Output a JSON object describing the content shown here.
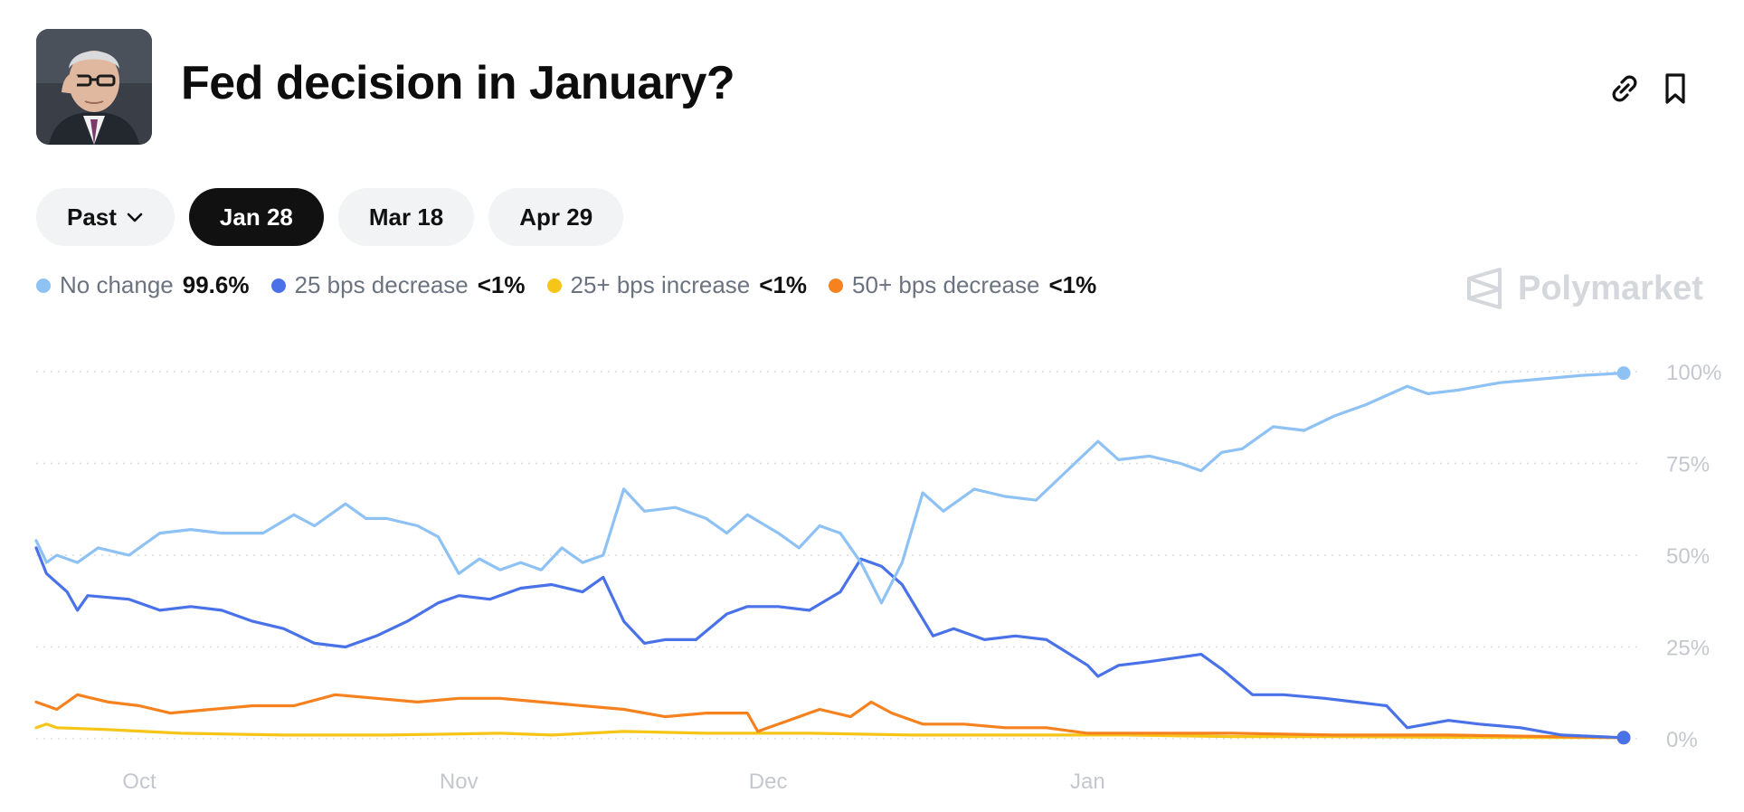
{
  "header": {
    "title": "Fed decision in January?",
    "avatar_icon": "portrait-image",
    "link_icon": "link-icon",
    "bookmark_icon": "bookmark-icon"
  },
  "tabs": [
    {
      "label": "Past",
      "active": false,
      "has_dropdown": true
    },
    {
      "label": "Jan 28",
      "active": true
    },
    {
      "label": "Mar 18",
      "active": false
    },
    {
      "label": "Apr 29",
      "active": false
    }
  ],
  "brand": {
    "name": "Polymarket"
  },
  "colors": {
    "no_change": "#8ec2f4",
    "decrease_25": "#4a72e8",
    "increase_25": "#f5c518",
    "decrease_50": "#f5821f",
    "grid": "#d8dbe0",
    "axis_text": "#c4c8ce"
  },
  "chart_data": {
    "type": "line",
    "x_labels": [
      "Oct",
      "Nov",
      "Dec",
      "Jan"
    ],
    "y_ticks": [
      "0%",
      "25%",
      "50%",
      "75%",
      "100%"
    ],
    "ylim": [
      0,
      100
    ],
    "grid": true,
    "legend_position": "top-left",
    "series": [
      {
        "name": "No change",
        "current": "99.6%",
        "color": "#8ec2f4",
        "points": [
          [
            "2024-09-21",
            54
          ],
          [
            "2024-09-22",
            48
          ],
          [
            "2024-09-23",
            50
          ],
          [
            "2024-09-25",
            48
          ],
          [
            "2024-09-27",
            52
          ],
          [
            "2024-09-30",
            50
          ],
          [
            "2024-10-03",
            56
          ],
          [
            "2024-10-06",
            57
          ],
          [
            "2024-10-09",
            56
          ],
          [
            "2024-10-13",
            56
          ],
          [
            "2024-10-16",
            61
          ],
          [
            "2024-10-18",
            58
          ],
          [
            "2024-10-21",
            64
          ],
          [
            "2024-10-23",
            60
          ],
          [
            "2024-10-25",
            60
          ],
          [
            "2024-10-28",
            58
          ],
          [
            "2024-10-30",
            55
          ],
          [
            "2024-11-01",
            45
          ],
          [
            "2024-11-03",
            49
          ],
          [
            "2024-11-05",
            46
          ],
          [
            "2024-11-07",
            48
          ],
          [
            "2024-11-09",
            46
          ],
          [
            "2024-11-11",
            52
          ],
          [
            "2024-11-13",
            48
          ],
          [
            "2024-11-15",
            50
          ],
          [
            "2024-11-17",
            68
          ],
          [
            "2024-11-19",
            62
          ],
          [
            "2024-11-22",
            63
          ],
          [
            "2024-11-25",
            60
          ],
          [
            "2024-11-27",
            56
          ],
          [
            "2024-11-29",
            61
          ],
          [
            "2024-12-02",
            56
          ],
          [
            "2024-12-04",
            52
          ],
          [
            "2024-12-06",
            58
          ],
          [
            "2024-12-08",
            56
          ],
          [
            "2024-12-10",
            48
          ],
          [
            "2024-12-12",
            37
          ],
          [
            "2024-12-14",
            48
          ],
          [
            "2024-12-16",
            67
          ],
          [
            "2024-12-18",
            62
          ],
          [
            "2024-12-21",
            68
          ],
          [
            "2024-12-24",
            66
          ],
          [
            "2024-12-27",
            65
          ],
          [
            "2024-12-30",
            73
          ],
          [
            "2025-01-02",
            81
          ],
          [
            "2025-01-04",
            76
          ],
          [
            "2025-01-07",
            77
          ],
          [
            "2025-01-10",
            75
          ],
          [
            "2025-01-12",
            73
          ],
          [
            "2025-01-14",
            78
          ],
          [
            "2025-01-16",
            79
          ],
          [
            "2025-01-19",
            85
          ],
          [
            "2025-01-22",
            84
          ],
          [
            "2025-01-25",
            88
          ],
          [
            "2025-01-28",
            91
          ],
          [
            "2025-02-01",
            96
          ],
          [
            "2025-02-03",
            94
          ],
          [
            "2025-02-06",
            95
          ],
          [
            "2025-02-10",
            97
          ],
          [
            "2025-02-14",
            98
          ],
          [
            "2025-02-18",
            99
          ],
          [
            "2025-02-22",
            99.6
          ]
        ]
      },
      {
        "name": "25 bps decrease",
        "current": "<1%",
        "color": "#4a72e8",
        "points": [
          [
            "2024-09-21",
            52
          ],
          [
            "2024-09-22",
            45
          ],
          [
            "2024-09-24",
            40
          ],
          [
            "2024-09-25",
            35
          ],
          [
            "2024-09-26",
            39
          ],
          [
            "2024-09-30",
            38
          ],
          [
            "2024-10-03",
            35
          ],
          [
            "2024-10-06",
            36
          ],
          [
            "2024-10-09",
            35
          ],
          [
            "2024-10-12",
            32
          ],
          [
            "2024-10-15",
            30
          ],
          [
            "2024-10-18",
            26
          ],
          [
            "2024-10-21",
            25
          ],
          [
            "2024-10-24",
            28
          ],
          [
            "2024-10-27",
            32
          ],
          [
            "2024-10-30",
            37
          ],
          [
            "2024-11-01",
            39
          ],
          [
            "2024-11-04",
            38
          ],
          [
            "2024-11-07",
            41
          ],
          [
            "2024-11-10",
            42
          ],
          [
            "2024-11-13",
            40
          ],
          [
            "2024-11-15",
            44
          ],
          [
            "2024-11-17",
            32
          ],
          [
            "2024-11-19",
            26
          ],
          [
            "2024-11-21",
            27
          ],
          [
            "2024-11-24",
            27
          ],
          [
            "2024-11-27",
            34
          ],
          [
            "2024-11-29",
            36
          ],
          [
            "2024-12-02",
            36
          ],
          [
            "2024-12-05",
            35
          ],
          [
            "2024-12-08",
            40
          ],
          [
            "2024-12-10",
            49
          ],
          [
            "2024-12-12",
            47
          ],
          [
            "2024-12-14",
            42
          ],
          [
            "2024-12-17",
            28
          ],
          [
            "2024-12-19",
            30
          ],
          [
            "2024-12-22",
            27
          ],
          [
            "2024-12-25",
            28
          ],
          [
            "2024-12-28",
            27
          ],
          [
            "2025-01-01",
            20
          ],
          [
            "2025-01-02",
            17
          ],
          [
            "2025-01-04",
            20
          ],
          [
            "2025-01-07",
            21
          ],
          [
            "2025-01-12",
            23
          ],
          [
            "2025-01-14",
            19
          ],
          [
            "2025-01-17",
            12
          ],
          [
            "2025-01-20",
            12
          ],
          [
            "2025-01-24",
            11
          ],
          [
            "2025-01-27",
            10
          ],
          [
            "2025-01-30",
            9
          ],
          [
            "2025-02-01",
            3
          ],
          [
            "2025-02-05",
            5
          ],
          [
            "2025-02-08",
            4
          ],
          [
            "2025-02-12",
            3
          ],
          [
            "2025-02-16",
            1
          ],
          [
            "2025-02-22",
            0.3
          ]
        ]
      },
      {
        "name": "25+ bps increase",
        "current": "<1%",
        "color": "#f5c518",
        "points": [
          [
            "2024-09-21",
            3
          ],
          [
            "2024-09-22",
            4
          ],
          [
            "2024-09-23",
            3
          ],
          [
            "2024-09-28",
            2.5
          ],
          [
            "2024-10-05",
            1.5
          ],
          [
            "2024-10-15",
            1
          ],
          [
            "2024-10-25",
            1
          ],
          [
            "2024-11-05",
            1.5
          ],
          [
            "2024-11-10",
            1
          ],
          [
            "2024-11-17",
            2
          ],
          [
            "2024-11-25",
            1.5
          ],
          [
            "2024-12-05",
            1.5
          ],
          [
            "2024-12-15",
            1
          ],
          [
            "2024-12-25",
            1
          ],
          [
            "2025-01-05",
            1
          ],
          [
            "2025-01-15",
            0.6
          ],
          [
            "2025-01-25",
            0.6
          ],
          [
            "2025-02-05",
            0.4
          ],
          [
            "2025-02-22",
            0.3
          ]
        ]
      },
      {
        "name": "50+ bps decrease",
        "current": "<1%",
        "color": "#f5821f",
        "points": [
          [
            "2024-09-21",
            10
          ],
          [
            "2024-09-23",
            8
          ],
          [
            "2024-09-25",
            12
          ],
          [
            "2024-09-28",
            10
          ],
          [
            "2024-10-01",
            9
          ],
          [
            "2024-10-04",
            7
          ],
          [
            "2024-10-08",
            8
          ],
          [
            "2024-10-12",
            9
          ],
          [
            "2024-10-16",
            9
          ],
          [
            "2024-10-20",
            12
          ],
          [
            "2024-10-24",
            11
          ],
          [
            "2024-10-28",
            10
          ],
          [
            "2024-11-01",
            11
          ],
          [
            "2024-11-05",
            11
          ],
          [
            "2024-11-09",
            10
          ],
          [
            "2024-11-13",
            9
          ],
          [
            "2024-11-17",
            8
          ],
          [
            "2024-11-21",
            6
          ],
          [
            "2024-11-25",
            7
          ],
          [
            "2024-11-29",
            7
          ],
          [
            "2024-11-30",
            2
          ],
          [
            "2024-12-03",
            5
          ],
          [
            "2024-12-06",
            8
          ],
          [
            "2024-12-09",
            6
          ],
          [
            "2024-12-11",
            10
          ],
          [
            "2024-12-13",
            7
          ],
          [
            "2024-12-16",
            4
          ],
          [
            "2024-12-20",
            4
          ],
          [
            "2024-12-24",
            3
          ],
          [
            "2024-12-28",
            3
          ],
          [
            "2025-01-01",
            1.5
          ],
          [
            "2025-01-06",
            1.5
          ],
          [
            "2025-01-15",
            1.5
          ],
          [
            "2025-01-25",
            1
          ],
          [
            "2025-02-05",
            1
          ],
          [
            "2025-02-22",
            0.3
          ]
        ]
      }
    ]
  }
}
